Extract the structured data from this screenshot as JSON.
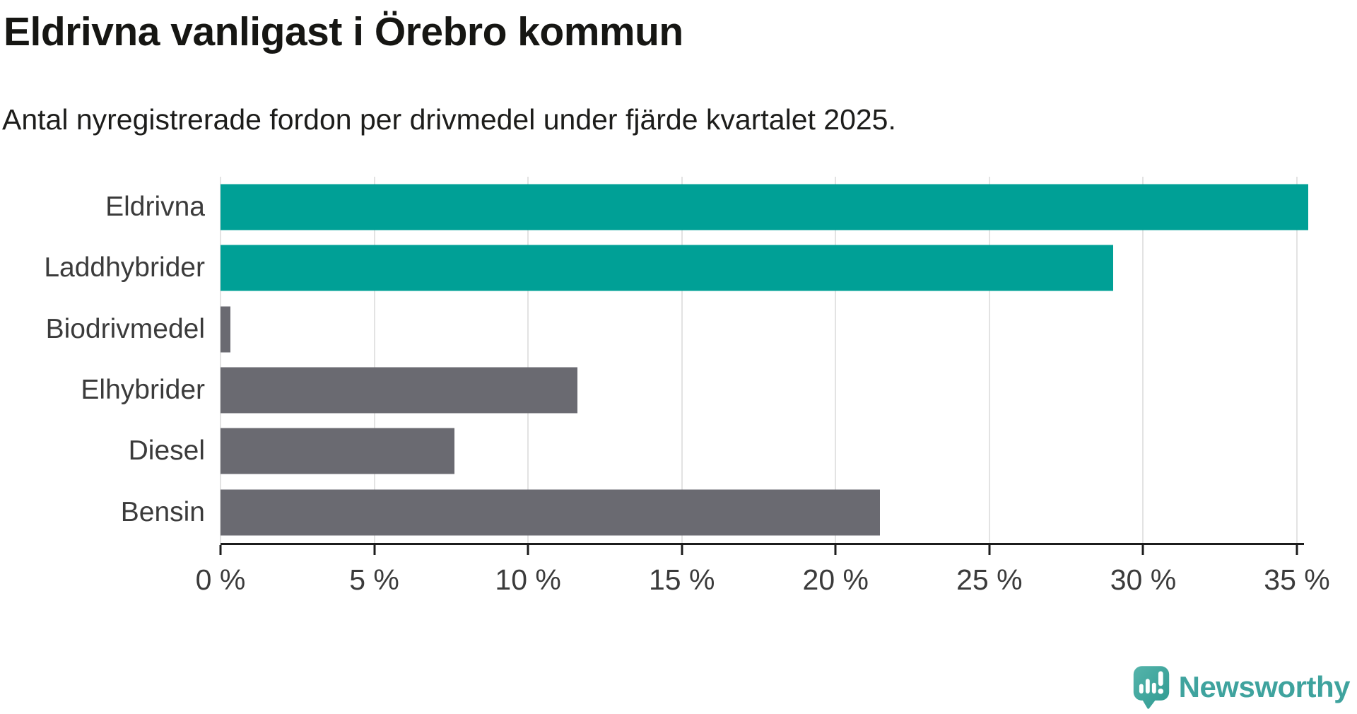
{
  "header": {
    "title": "Eldrivna vanligast i Örebro kommun",
    "subtitle": "Antal nyregistrerade fordon per drivmedel under fjärde kvartalet 2025."
  },
  "chart_data": {
    "type": "bar",
    "orientation": "horizontal",
    "title": "Eldrivna vanligast i Örebro kommun",
    "subtitle": "Antal nyregistrerade fordon per drivmedel under fjärde kvartalet 2025.",
    "categories": [
      "Eldrivna",
      "Laddhybrider",
      "Biodrivmedel",
      "Elhybrider",
      "Diesel",
      "Bensin"
    ],
    "values": [
      33.5,
      27.5,
      0.3,
      11.0,
      7.2,
      20.3
    ],
    "highlighted": [
      true,
      true,
      false,
      false,
      false,
      false
    ],
    "unit": "%",
    "xlim": [
      0,
      35
    ],
    "x_tick_step": 5,
    "x_ticks": [
      "0 %",
      "5 %",
      "10 %",
      "15 %",
      "20 %",
      "25 %",
      "30 %",
      "35 %"
    ],
    "grid": true,
    "legend_position": "none",
    "colors": {
      "highlight": "#00a096",
      "default": "#6a6a71",
      "axis": "#1c1c1c",
      "gridline": "#e3e3e3",
      "label": "#3b3b3b"
    }
  },
  "footer": {
    "brand": "Newsworthy",
    "brand_color": "#3fa39e",
    "logo_icon": "newsworthy-bubble-chart-icon"
  }
}
